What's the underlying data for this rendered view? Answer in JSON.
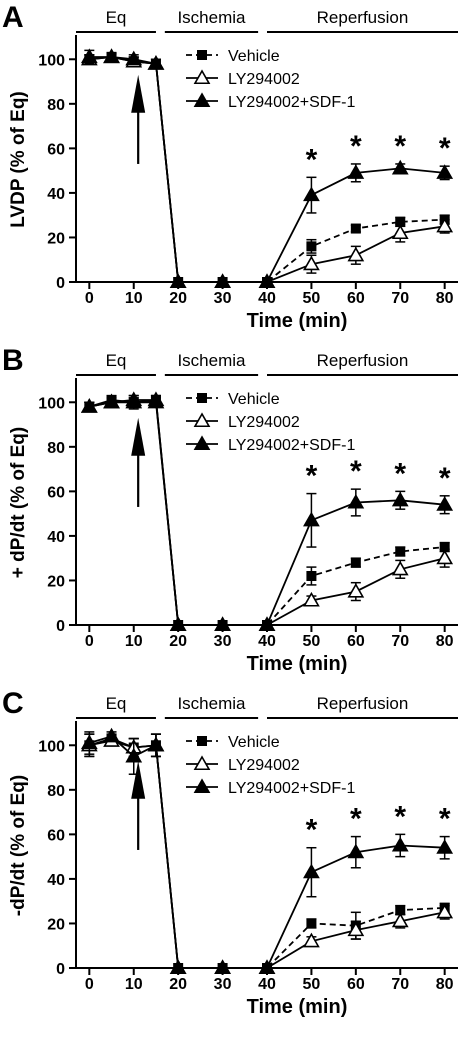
{
  "figure": {
    "x_ticks": [
      0,
      10,
      20,
      30,
      40,
      50,
      60,
      70,
      80
    ],
    "phases": [
      {
        "label": "Eq",
        "start": -3,
        "end": 15
      },
      {
        "label": "Ischemia",
        "start": 17,
        "end": 38
      },
      {
        "label": "Reperfusion",
        "start": 40,
        "end": 83
      }
    ]
  },
  "chart_data": [
    {
      "type": "line",
      "panel_label": "A",
      "xlabel": "Time  (min)",
      "ylabel": "LVDP (% of Eq)",
      "xlim": [
        -3,
        83
      ],
      "ylim": [
        0,
        110
      ],
      "y_ticks": [
        0,
        20,
        40,
        60,
        80,
        100
      ],
      "x": [
        0,
        5,
        10,
        15,
        20,
        30,
        40,
        50,
        60,
        70,
        80
      ],
      "arrow_at": 11,
      "legend_position": "right",
      "series": [
        {
          "name": "Vehicle",
          "marker": "square",
          "line": "dashed",
          "values": [
            100,
            101,
            99,
            98,
            0,
            0,
            0,
            16,
            24,
            27,
            28
          ],
          "errors": [
            2,
            1.5,
            2,
            2,
            0,
            0,
            0,
            3,
            1.5,
            2,
            2
          ]
        },
        {
          "name": "LY294002",
          "marker": "triangle-open",
          "line": "solid",
          "values": [
            100,
            101,
            99,
            98,
            0,
            0,
            0,
            8,
            12,
            22,
            25
          ],
          "errors": [
            2,
            1.5,
            2,
            2,
            0,
            0,
            0,
            4,
            4,
            4,
            3
          ]
        },
        {
          "name": "LY294002+SDF-1",
          "marker": "triangle-filled",
          "line": "solid",
          "values": [
            101,
            101,
            100,
            98,
            0,
            0,
            0,
            39,
            49,
            51,
            49
          ],
          "errors": [
            3,
            2,
            2,
            2,
            0,
            0,
            0,
            8,
            4,
            2,
            3
          ]
        }
      ],
      "significance": {
        "symbol": "*",
        "x": [
          50,
          60,
          70,
          80
        ]
      }
    },
    {
      "type": "line",
      "panel_label": "B",
      "xlabel": "Time  (min)",
      "ylabel": "+ dP/dt (% of Eq)",
      "xlim": [
        -3,
        83
      ],
      "ylim": [
        0,
        110
      ],
      "y_ticks": [
        0,
        20,
        40,
        60,
        80,
        100
      ],
      "x": [
        0,
        5,
        10,
        15,
        20,
        30,
        40,
        50,
        60,
        70,
        80
      ],
      "arrow_at": 11,
      "legend_position": "right",
      "series": [
        {
          "name": "Vehicle",
          "marker": "square",
          "line": "dashed",
          "values": [
            98,
            101,
            100,
            101,
            0,
            0,
            0,
            22,
            28,
            33,
            35
          ],
          "errors": [
            2,
            2,
            2,
            2,
            0,
            0,
            0,
            4,
            2,
            2,
            2
          ]
        },
        {
          "name": "LY294002",
          "marker": "triangle-open",
          "line": "solid",
          "values": [
            98,
            100,
            101,
            101,
            0,
            0,
            0,
            11,
            15,
            25,
            30
          ],
          "errors": [
            2,
            2,
            2,
            2,
            0,
            0,
            0,
            2,
            4,
            4,
            4
          ]
        },
        {
          "name": "LY294002+SDF-1",
          "marker": "triangle-filled",
          "line": "solid",
          "values": [
            98,
            100,
            100,
            100,
            0,
            0,
            0,
            47,
            55,
            56,
            54
          ],
          "errors": [
            2,
            2,
            3,
            2,
            0,
            0,
            0,
            12,
            6,
            4,
            4
          ]
        }
      ],
      "significance": {
        "symbol": "*",
        "x": [
          50,
          60,
          70,
          80
        ]
      }
    },
    {
      "type": "line",
      "panel_label": "C",
      "xlabel": "Time  (min)",
      "ylabel": "-dP/dt (% of Eq)",
      "xlim": [
        -3,
        83
      ],
      "ylim": [
        0,
        110
      ],
      "y_ticks": [
        0,
        20,
        40,
        60,
        80,
        100
      ],
      "x": [
        0,
        5,
        10,
        15,
        20,
        30,
        40,
        50,
        60,
        70,
        80
      ],
      "arrow_at": 11,
      "legend_position": "right",
      "series": [
        {
          "name": "Vehicle",
          "marker": "square",
          "line": "dashed",
          "values": [
            100,
            103,
            99,
            100,
            0,
            0,
            0,
            20,
            19,
            26,
            27
          ],
          "errors": [
            5,
            2,
            4,
            5,
            0,
            0,
            0,
            2,
            6,
            2,
            2
          ]
        },
        {
          "name": "LY294002",
          "marker": "triangle-open",
          "line": "solid",
          "values": [
            100,
            102,
            99,
            100,
            0,
            0,
            0,
            12,
            17,
            21,
            25
          ],
          "errors": [
            5,
            2,
            4,
            5,
            0,
            0,
            0,
            2,
            4,
            3,
            3
          ]
        },
        {
          "name": "LY294002+SDF-1",
          "marker": "triangle-filled",
          "line": "solid",
          "values": [
            101,
            104,
            95,
            100,
            0,
            0,
            0,
            43,
            52,
            55,
            54
          ],
          "errors": [
            5,
            2,
            8,
            5,
            0,
            0,
            0,
            11,
            7,
            5,
            5
          ]
        }
      ],
      "significance": {
        "symbol": "*",
        "x": [
          50,
          60,
          70,
          80
        ]
      }
    }
  ]
}
